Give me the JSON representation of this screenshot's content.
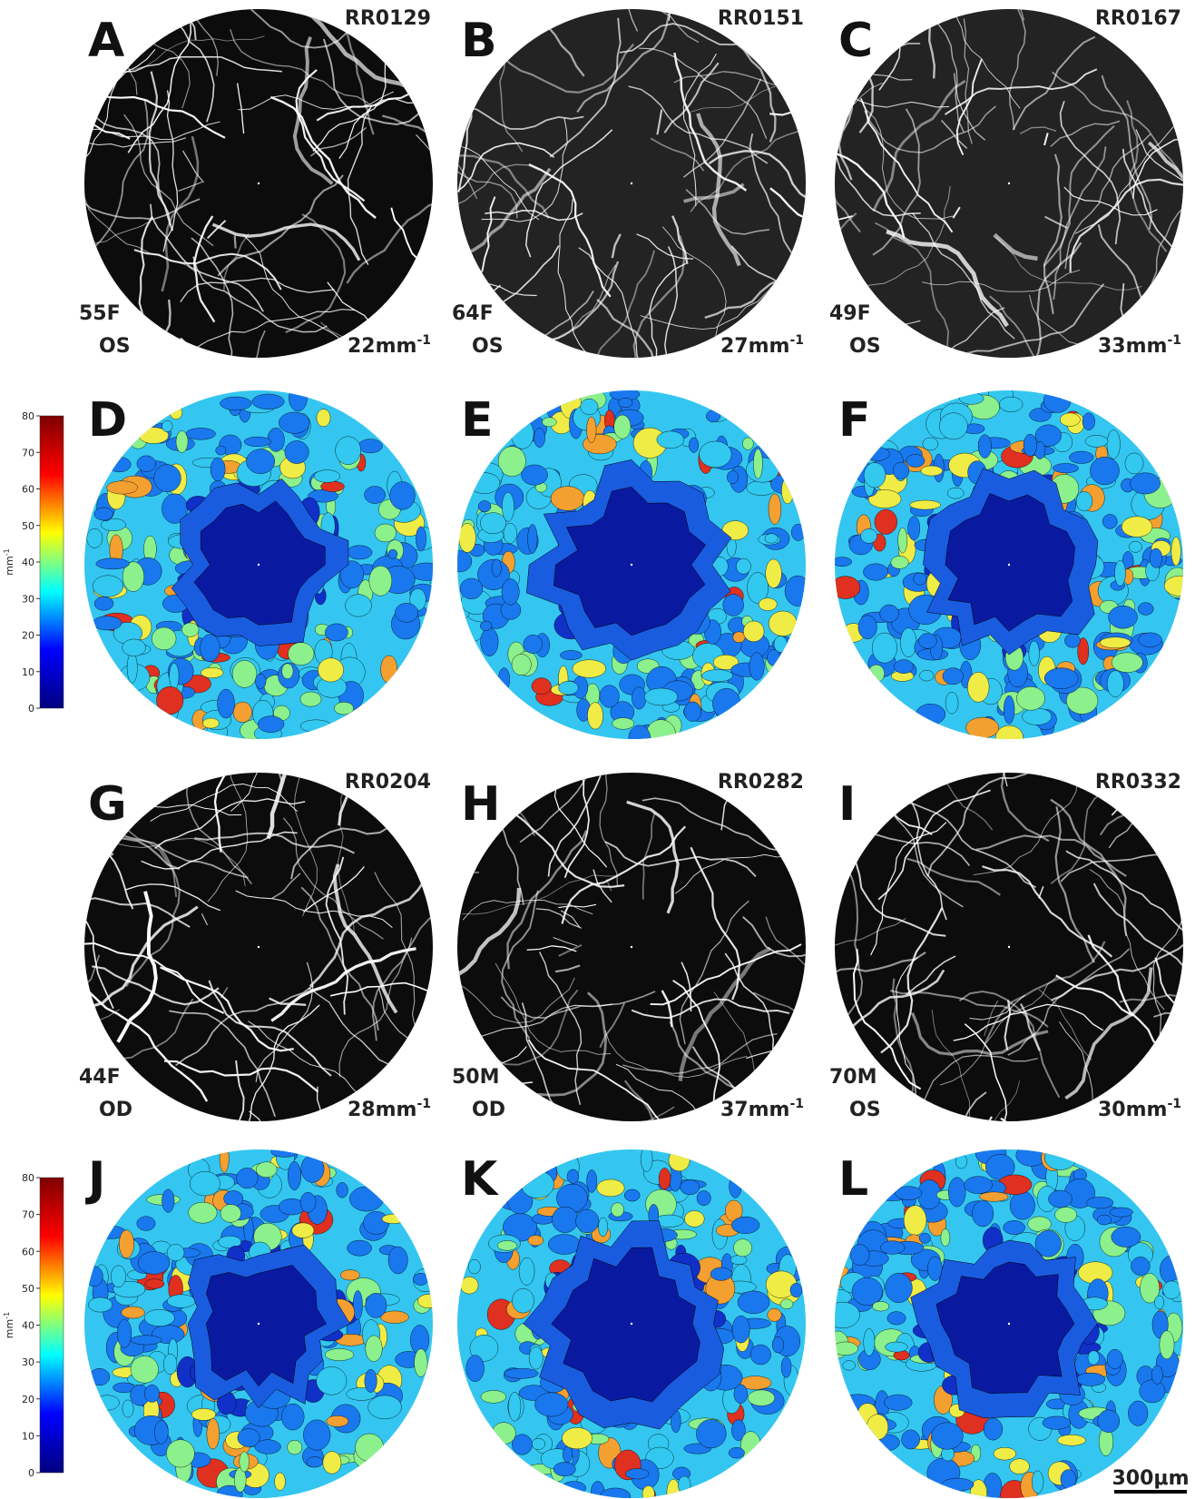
{
  "figure": {
    "image_panels": [
      {
        "letter": "A",
        "id": "RR0129",
        "age_sex": "55F",
        "eye": "OS",
        "density": "22mm",
        "density_exp": "-1"
      },
      {
        "letter": "B",
        "id": "RR0151",
        "age_sex": "64F",
        "eye": "OS",
        "density": "27mm",
        "density_exp": "-1"
      },
      {
        "letter": "C",
        "id": "RR0167",
        "age_sex": "49F",
        "eye": "OS",
        "density": "33mm",
        "density_exp": "-1"
      },
      {
        "letter": "G",
        "id": "RR0204",
        "age_sex": "44F",
        "eye": "OD",
        "density": "28mm",
        "density_exp": "-1"
      },
      {
        "letter": "H",
        "id": "RR0282",
        "age_sex": "50M",
        "eye": "OD",
        "density": "37mm",
        "density_exp": "-1"
      },
      {
        "letter": "I",
        "id": "RR0332",
        "age_sex": "70M",
        "eye": "OS",
        "density": "30mm",
        "density_exp": "-1"
      }
    ],
    "map_panels": [
      {
        "letter": "D"
      },
      {
        "letter": "E"
      },
      {
        "letter": "F"
      },
      {
        "letter": "J"
      },
      {
        "letter": "K"
      },
      {
        "letter": "L"
      }
    ],
    "colorbars": [
      {
        "ticks": [
          0,
          10,
          20,
          30,
          40,
          50,
          60,
          70,
          80
        ],
        "label": "mm",
        "label_exp": "-1"
      },
      {
        "ticks": [
          0,
          10,
          20,
          30,
          40,
          50,
          60,
          70,
          80
        ],
        "label": "mm",
        "label_exp": "-1"
      }
    ],
    "scale_bar": "300μm"
  }
}
